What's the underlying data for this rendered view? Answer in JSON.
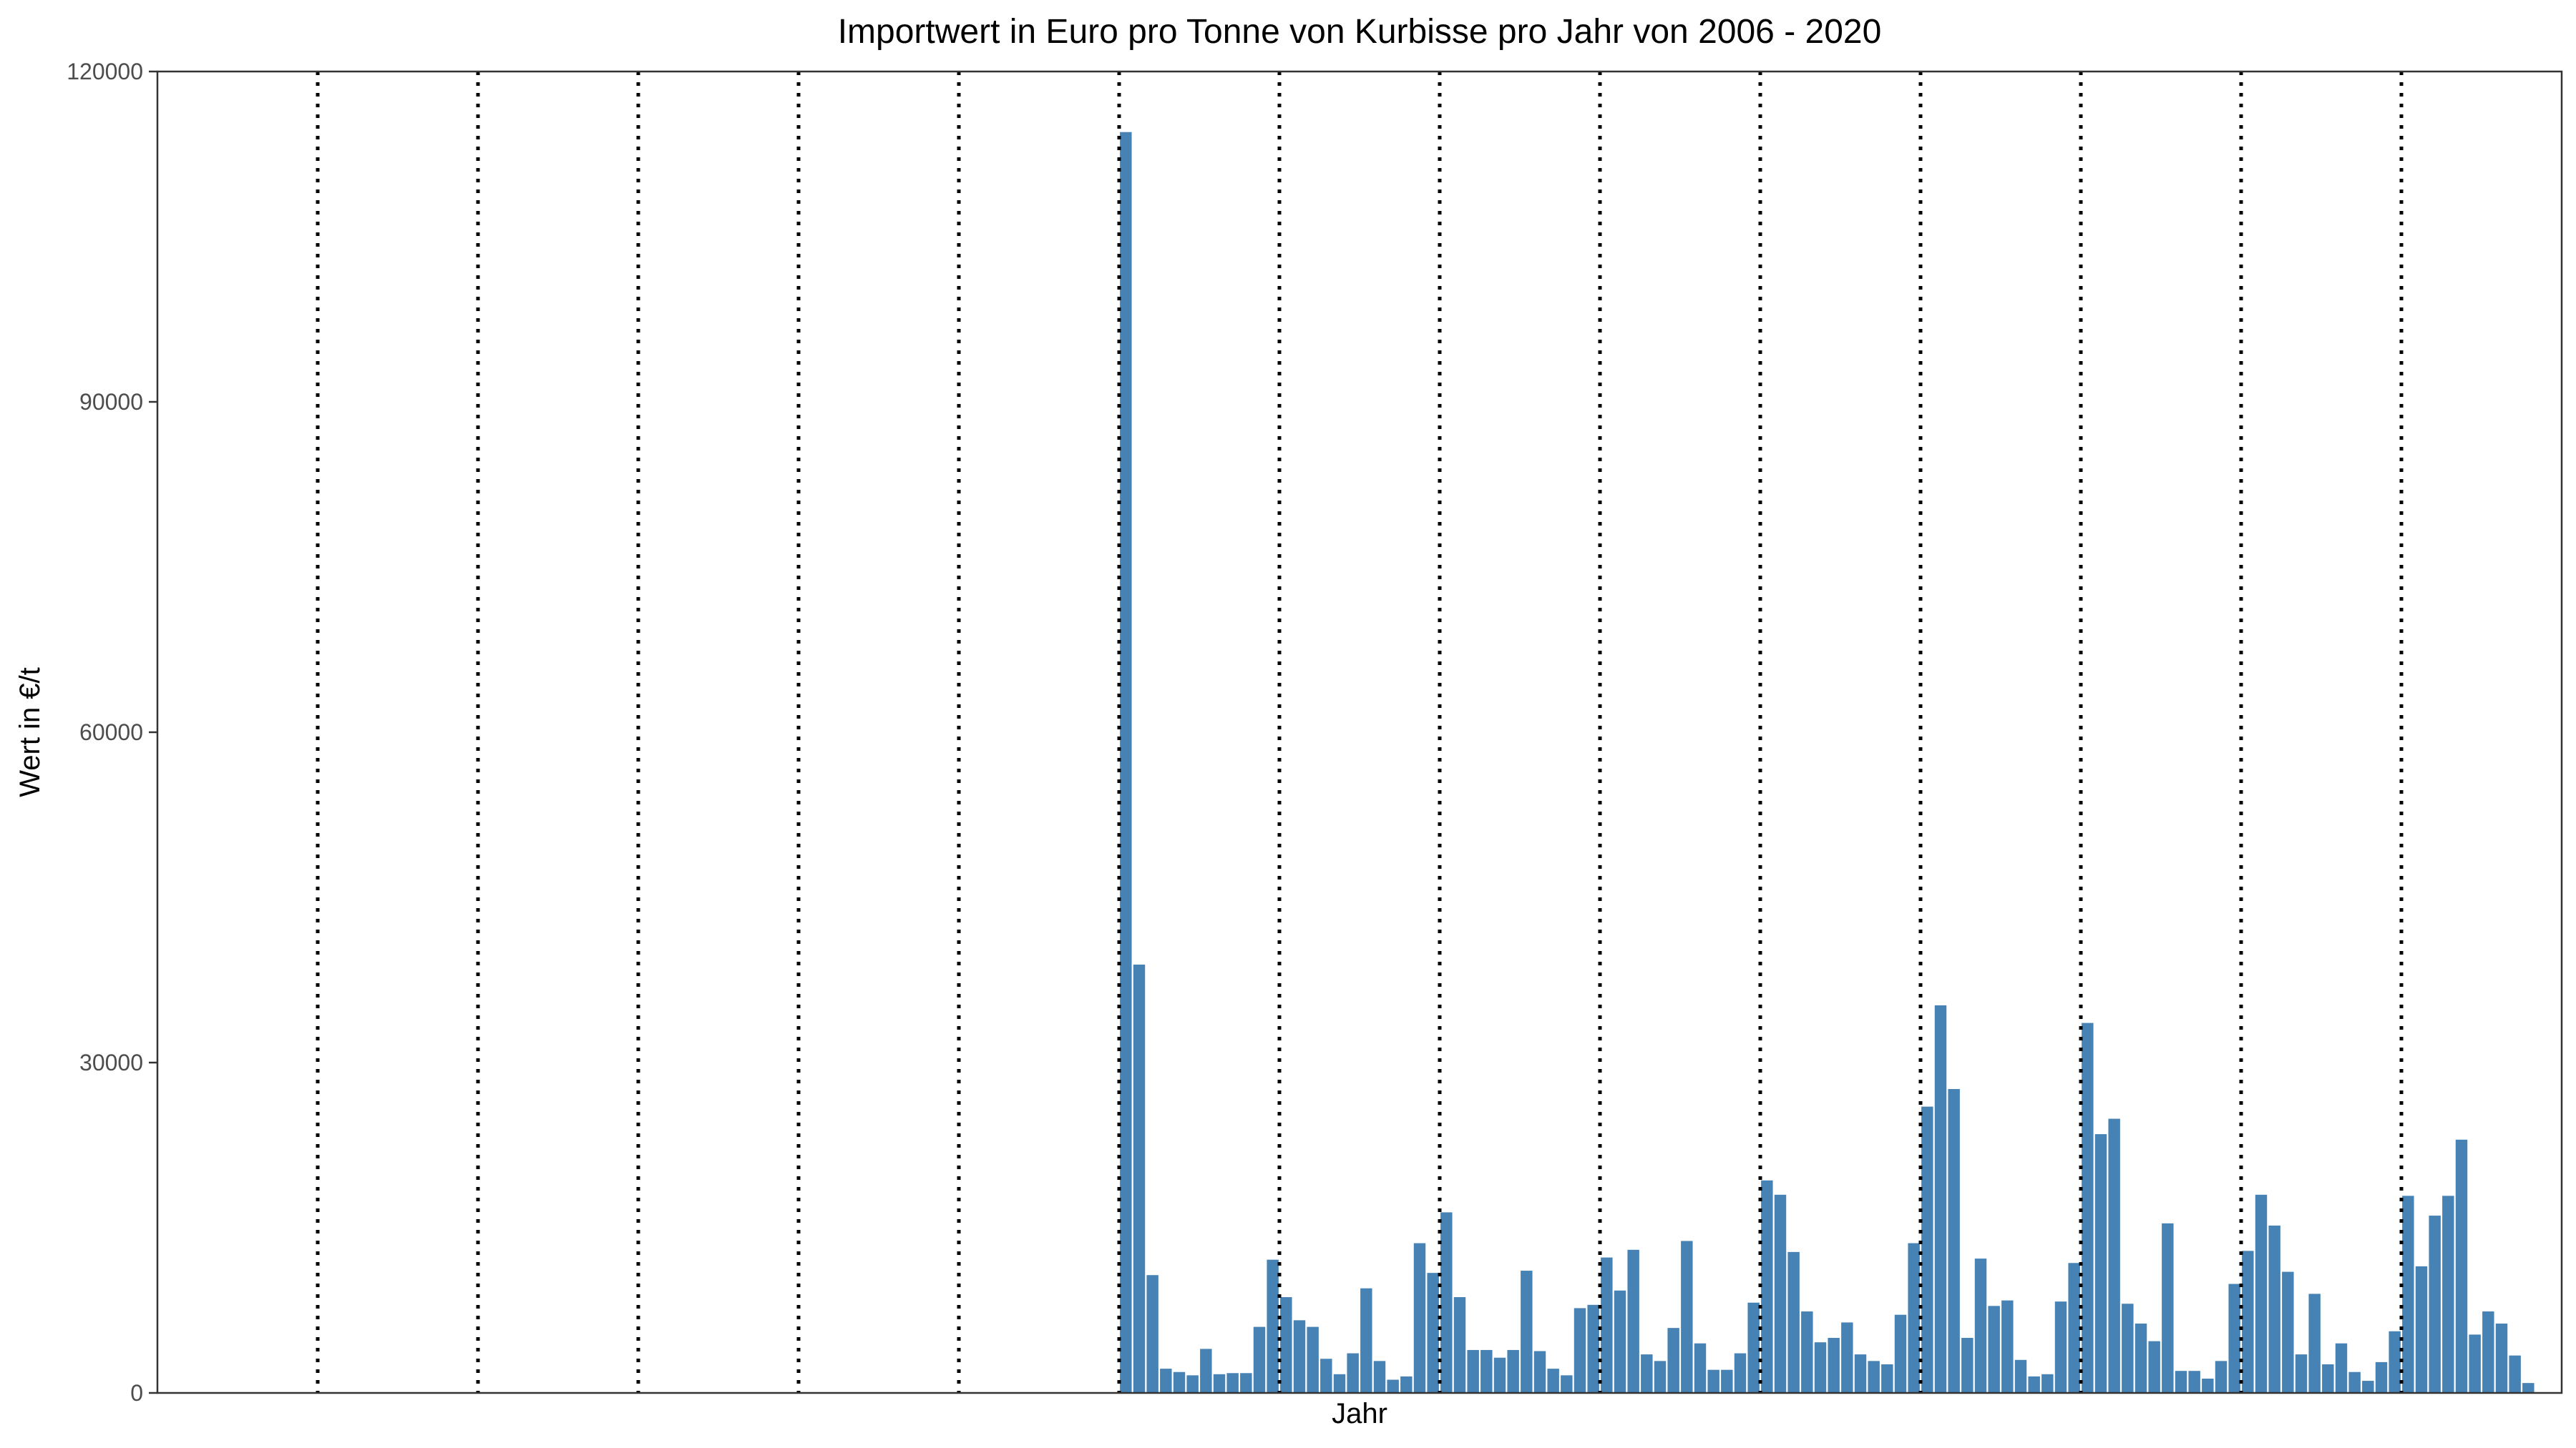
{
  "chart_data": {
    "type": "bar",
    "title": "Importwert in Euro pro Tonne von Kurbisse pro Jahr von 2006 - 2020",
    "xlabel": "Jahr",
    "ylabel": "Wert in €/t",
    "ylim": [
      0,
      120000
    ],
    "yticks": [
      0,
      30000,
      60000,
      90000,
      120000
    ],
    "grid": false,
    "legend": "none",
    "color": "#4682b4",
    "months_per_year": 12,
    "year_count": 15,
    "year_separators_at_month": [
      12,
      24,
      36,
      48,
      60,
      72,
      84,
      96,
      108,
      120,
      132,
      144,
      156,
      168
    ],
    "values": [
      null,
      null,
      null,
      null,
      null,
      null,
      null,
      null,
      null,
      null,
      null,
      null,
      null,
      null,
      null,
      null,
      null,
      null,
      null,
      null,
      null,
      null,
      null,
      null,
      null,
      null,
      null,
      null,
      null,
      null,
      null,
      null,
      null,
      null,
      null,
      null,
      null,
      null,
      null,
      null,
      null,
      null,
      null,
      null,
      null,
      null,
      null,
      null,
      null,
      null,
      null,
      null,
      null,
      null,
      null,
      null,
      null,
      null,
      null,
      null,
      null,
      null,
      null,
      null,
      null,
      null,
      null,
      null,
      null,
      null,
      null,
      null,
      114500,
      38900,
      10700,
      2200,
      1900,
      1600,
      4000,
      1700,
      1800,
      1800,
      6000,
      12100,
      8700,
      6600,
      6000,
      3100,
      1700,
      3600,
      9500,
      2900,
      1200,
      1500,
      13600,
      10900,
      16400,
      8700,
      3900,
      3900,
      3200,
      3900,
      11100,
      3800,
      2200,
      1600,
      7700,
      8000,
      12300,
      9300,
      13000,
      3500,
      2900,
      5900,
      13800,
      4500,
      2100,
      2100,
      3600,
      8200,
      19300,
      18000,
      12800,
      7400,
      4600,
      5000,
      6400,
      3500,
      2900,
      2600,
      7100,
      13600,
      26000,
      35200,
      27600,
      5000,
      12200,
      7900,
      8400,
      3000,
      1500,
      1700,
      8300,
      11800,
      33600,
      23500,
      24900,
      8100,
      6300,
      4700,
      15400,
      2000,
      2000,
      1300,
      2900,
      9900,
      12900,
      18000,
      15200,
      11000,
      3500,
      9000,
      2600,
      4500,
      1900,
      1100,
      2800,
      5600,
      17900,
      11500,
      16100,
      17900,
      23000,
      5300,
      7400,
      6300,
      3400,
      900,
      null,
      null
    ]
  }
}
